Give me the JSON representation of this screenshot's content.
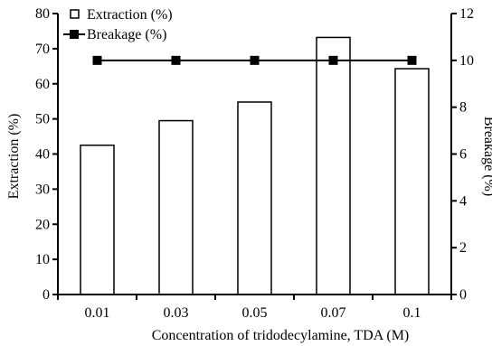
{
  "chart_data": {
    "type": "bar",
    "categories": [
      "0.01",
      "0.03",
      "0.05",
      "0.07",
      "0.1"
    ],
    "xlabel": "Concentration of tridodecylamine, TDA (M)",
    "series": [
      {
        "name": "Extraction (%)",
        "type": "bar",
        "axis": "left",
        "values": [
          42.5,
          49.5,
          54.8,
          73.2,
          64.3
        ]
      },
      {
        "name": "Breakage (%)",
        "type": "line",
        "axis": "right",
        "values": [
          10,
          10,
          10,
          10,
          10
        ]
      }
    ],
    "y_left": {
      "label": "Extraction (%)",
      "ylim": [
        0,
        80
      ],
      "ticks": [
        "0",
        "10",
        "20",
        "30",
        "40",
        "50",
        "60",
        "70",
        "80"
      ]
    },
    "y_right": {
      "label": "Breakage (%)",
      "ylim": [
        0,
        12
      ],
      "ticks": [
        "0",
        "2",
        "4",
        "6",
        "8",
        "10",
        "12"
      ]
    },
    "grid": false,
    "legend_position": "top-left",
    "colors": {
      "bar_fill": "#ffffff",
      "stroke": "#000000",
      "line": "#000000"
    }
  }
}
